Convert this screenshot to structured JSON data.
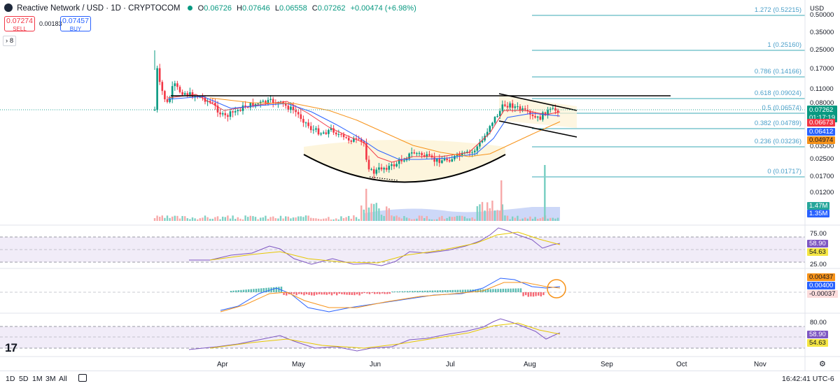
{
  "header": {
    "symbol_title": "Reactive Network / USD · 1D · CRYPTOCOM",
    "ohlc": [
      {
        "k": "O",
        "v": "0.06726"
      },
      {
        "k": "H",
        "v": "0.07646"
      },
      {
        "k": "L",
        "v": "0.06558"
      },
      {
        "k": "C",
        "v": "0.07262"
      }
    ],
    "change": "+0.00474 (+6.98%)",
    "sell_price": "0.07274",
    "sell_label": "SELL",
    "spread": "0.00183",
    "buy_price": "0.07457",
    "buy_label": "BUY",
    "indicators_count": "8"
  },
  "price_axis": {
    "currency": "USD",
    "ticks": [
      "0.50000",
      "0.35000",
      "0.25000",
      "0.17000",
      "0.11000",
      "0.08000",
      "0.05500",
      "0.03500",
      "0.02500",
      "0.01700",
      "0.01200"
    ],
    "price_badge": "0.07262",
    "countdown": "01:17:19",
    "ma_short": "0.06673",
    "ma_mid": "0.06412",
    "ma_long": "0.04974",
    "volume_a": "1.47M",
    "volume_b": "1.35M"
  },
  "fib_levels": [
    "1.272 (0.52215)",
    "1 (0.25160)",
    "0.786 (0.14166)",
    "0.618 (0.09024)",
    "0.5 (0.06574)",
    "0.382 (0.04789)",
    "0.236 (0.03236)",
    "0 (0.01717)"
  ],
  "rsi_pane": {
    "tick_high": "75.00",
    "tick_low": "25.00",
    "value_a": "58.90",
    "value_b": "54.63"
  },
  "macd_pane": {
    "value_a": "0.00437",
    "value_b": "0.00400",
    "value_c": "-0.00037"
  },
  "rsi2_pane": {
    "tick_high": "80.00",
    "value_a": "58.90",
    "value_b": "54.63"
  },
  "time_axis": {
    "labels": [
      "Apr",
      "May",
      "Jun",
      "Jul",
      "Aug",
      "Sep",
      "Oct",
      "Nov"
    ]
  },
  "bottom_bar": {
    "ranges": [
      "1D",
      "5D",
      "1M",
      "3M",
      "All"
    ],
    "clock": "16:42:41 UTC-6"
  },
  "watermark": "17",
  "colors": {
    "up": "#089981",
    "down": "#f23645",
    "ema_fast": "#2962ff",
    "ema_mid": "#f23645",
    "ema_slow": "#f7931a",
    "fib": "#1e90a0",
    "rsi": "#7e57c2"
  }
}
